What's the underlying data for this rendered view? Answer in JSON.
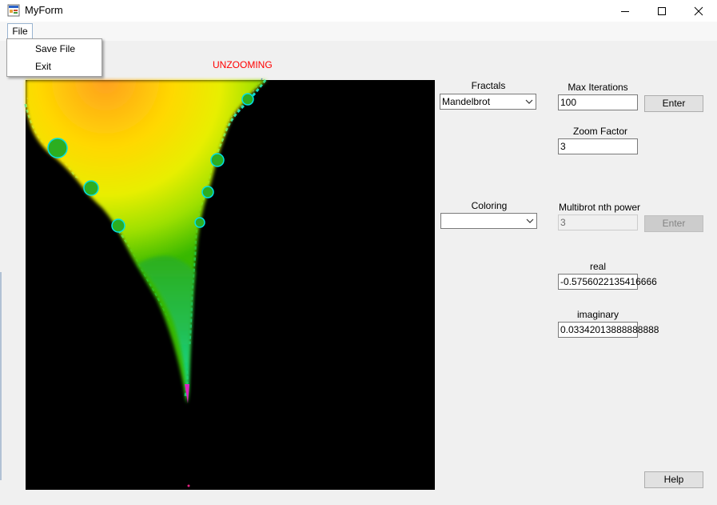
{
  "window": {
    "title": "MyForm",
    "controls": {
      "minimize": "minimize-icon",
      "maximize": "maximize-icon",
      "close": "close-icon"
    }
  },
  "menu": {
    "file_label": "File",
    "items": [
      {
        "label": "Save File"
      },
      {
        "label": "Exit"
      }
    ]
  },
  "status": {
    "text": "UNZOOMING",
    "color": "#ff0000"
  },
  "fractals": {
    "label": "Fractals",
    "selected": "Mandelbrot"
  },
  "coloring": {
    "label": "Coloring",
    "selected": ""
  },
  "max_iterations": {
    "label": "Max Iterations",
    "value": "100",
    "enter_label": "Enter"
  },
  "zoom_factor": {
    "label": "Zoom Factor",
    "value": "3"
  },
  "multibrot": {
    "label": "Multibrot nth power",
    "value": "3",
    "enter_label": "Enter",
    "disabled": true
  },
  "real": {
    "label": "real",
    "value": "-0.5756022135416666"
  },
  "imaginary": {
    "label": "imaginary",
    "value": "0.03342013888888888"
  },
  "help": {
    "label": "Help"
  },
  "colors": {
    "status_red": "#ff0000",
    "canvas_bg": "#000000",
    "window_bg": "#f0f0f0"
  }
}
